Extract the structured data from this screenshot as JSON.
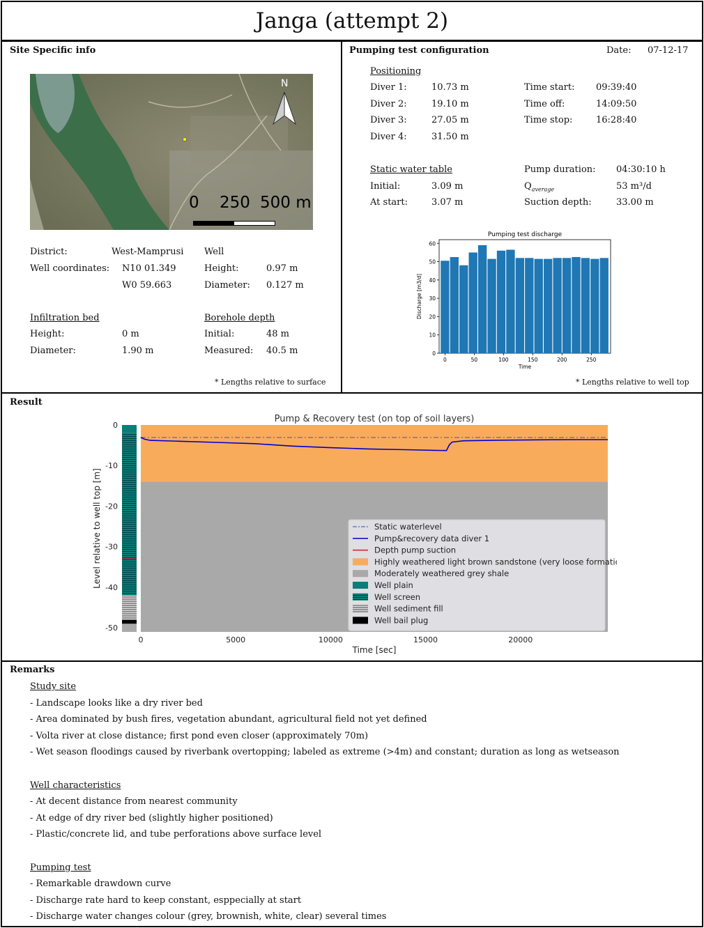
{
  "title": "Janga (attempt 2)",
  "site": {
    "heading": "Site Specific info",
    "map": {
      "north": "N",
      "scale_labels": [
        "0",
        "250",
        "500 m"
      ]
    },
    "district_label": "District:",
    "district": "West-Mamprusi",
    "coords_label": "Well coordinates:",
    "coord_n": "N10 01.349",
    "coord_w": "W0 59.663",
    "well_heading": "Well",
    "height_label": "Height:",
    "well_height": "0.97 m",
    "diameter_label": "Diameter:",
    "well_diameter": "0.127 m",
    "infil_heading": "Infiltration bed",
    "infil_height_label": "Height:",
    "infil_height": "0 m",
    "infil_diameter_label": "Diameter:",
    "infil_diameter": "1.90 m",
    "borehole_heading": "Borehole depth",
    "bh_initial_label": "Initial:",
    "bh_initial": "48 m",
    "bh_measured_label": "Measured:",
    "bh_measured": "40.5 m",
    "footnote": "*  Lengths  relative to surface"
  },
  "pump": {
    "heading": "Pumping test configuration",
    "date_label": "Date:",
    "date": "07-12-17",
    "positioning_heading": "Positioning",
    "divers": [
      {
        "label": "Diver 1:",
        "value": "10.73 m"
      },
      {
        "label": "Diver 2:",
        "value": "19.10 m"
      },
      {
        "label": "Diver 3:",
        "value": "27.05 m"
      },
      {
        "label": "Diver 4:",
        "value": "31.50 m"
      }
    ],
    "times": [
      {
        "label": "Time start:",
        "value": "09:39:40"
      },
      {
        "label": "Time off:",
        "value": "14:09:50"
      },
      {
        "label": "Time stop:",
        "value": "16:28:40"
      }
    ],
    "static_heading": "Static water table",
    "initial_label": "Initial:",
    "initial": "3.09 m",
    "atstart_label": "At start:",
    "atstart": "3.07 m",
    "duration_label": "Pump duration:",
    "duration": "04:30:10 h",
    "q_label": "Q",
    "q_sub": "average",
    "q_value": "53 m³/d",
    "suction_label": "Suction depth:",
    "suction": "33.00 m",
    "footnote": "*  Lengths  relative to well top"
  },
  "chart_data": [
    {
      "type": "bar",
      "title": "Pumping test discharge",
      "xlabel": "Time",
      "ylabel": "Discharge [m3/d]",
      "x": [
        0,
        16,
        32,
        48,
        64,
        80,
        96,
        112,
        128,
        144,
        160,
        176,
        192,
        208,
        224,
        240,
        256,
        272
      ],
      "values": [
        50.5,
        52.5,
        48,
        55,
        59,
        51.5,
        56,
        56.5,
        52,
        52,
        51.5,
        51.5,
        52,
        52,
        52.5,
        52,
        51.5,
        52
      ],
      "xlim": [
        -10,
        283
      ],
      "ylim": [
        0,
        62
      ],
      "xticks": [
        0,
        50,
        100,
        150,
        200,
        250
      ],
      "yticks": [
        0,
        10,
        20,
        30,
        40,
        50,
        60
      ],
      "color": "#1f77b4"
    },
    {
      "type": "line",
      "title": "Pump & Recovery test (on top of soil layers)",
      "xlabel": "Time [sec]",
      "ylabel": "Level relative to well top [m]",
      "xlim": [
        0,
        24600
      ],
      "ylim": [
        -51,
        0
      ],
      "xticks": [
        0,
        5000,
        10000,
        15000,
        20000
      ],
      "yticks": [
        0,
        -10,
        -20,
        -30,
        -40,
        -50
      ],
      "static_level": -3.07,
      "suction_depth": -33.0,
      "sandstone_range": [
        0,
        -14
      ],
      "shale_range": [
        -14,
        -51
      ],
      "series": [
        {
          "name": "Pump&recovery data diver 1",
          "x": [
            0,
            200,
            500,
            2000,
            4000,
            6000,
            8000,
            10000,
            12000,
            14000,
            15500,
            16100,
            16250,
            16400,
            17000,
            19000,
            21000,
            23000,
            24600
          ],
          "y": [
            -3.07,
            -3.5,
            -3.8,
            -4.0,
            -4.3,
            -4.6,
            -5.2,
            -5.6,
            -5.9,
            -6.1,
            -6.25,
            -6.3,
            -4.9,
            -4.2,
            -3.9,
            -3.75,
            -3.65,
            -3.6,
            -3.6
          ]
        }
      ],
      "legend": [
        {
          "label": "Static waterlevel",
          "kind": "dashdot",
          "color": "#4c72b0"
        },
        {
          "label": "Pump&recovery data diver 1",
          "kind": "line",
          "color": "#0000cc"
        },
        {
          "label": "Depth pump suction",
          "kind": "line",
          "color": "#cc2020"
        },
        {
          "label": "Highly weathered light brown sandstone (very loose formation)",
          "kind": "patch",
          "color": "#f9ab5c"
        },
        {
          "label": "Moderately weathered grey shale",
          "kind": "patch",
          "color": "#a9a9a9"
        },
        {
          "label": "Well plain",
          "kind": "patch",
          "color": "#0a7f7a"
        },
        {
          "label": "Well screen",
          "kind": "hatch",
          "color": "#0a7f7a"
        },
        {
          "label": "Well sediment fill",
          "kind": "hatchgrey",
          "color": "#777777"
        },
        {
          "label": "Well bail plug",
          "kind": "patch",
          "color": "#000000"
        }
      ],
      "legend_position": "lower-right"
    }
  ],
  "result": {
    "heading": "Result"
  },
  "remarks": {
    "heading": "Remarks",
    "sections": [
      {
        "title": "Study site",
        "items": [
          "- Landscape looks like a dry river bed",
          "- Area dominated by bush fires, vegetation abundant, agricultural field not yet defined",
          "- Volta river at close distance; first pond even closer (approximately 70m)",
          "- Wet season floodings caused by riverbank overtopping; labeled as extreme (>4m) and constant; duration as long as wetseason"
        ]
      },
      {
        "title": "Well characteristics",
        "items": [
          "- At decent distance from nearest community",
          "- At edge of dry river bed (slightly higher positioned)",
          "- Plastic/concrete lid, and tube perforations above surface level"
        ]
      },
      {
        "title": "Pumping test",
        "items": [
          "- Remarkable drawdown curve",
          "- Discharge rate hard to keep constant, esppecially at start",
          "- Discharge water changes colour (grey, brownish, white, clear) several times"
        ]
      }
    ]
  }
}
